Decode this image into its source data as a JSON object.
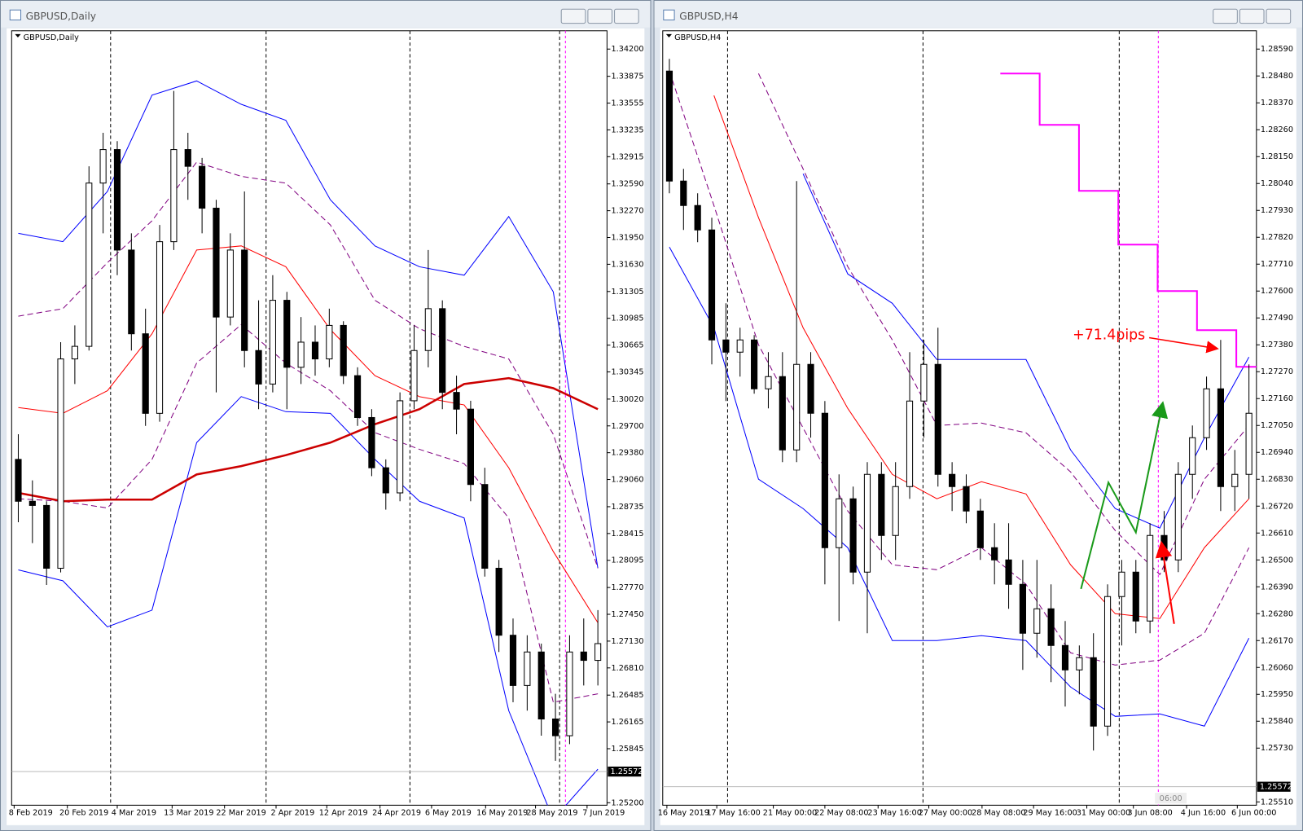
{
  "chart_data": [
    {
      "type": "candlestick",
      "window_title": "GBPUSD,Daily",
      "symbol_label": "GBPUSD,Daily",
      "x_labels": [
        "8 Feb 2019",
        "20 Feb 2019",
        "4 Mar 2019",
        "13 Mar 2019",
        "22 Mar 2019",
        "2 Apr 2019",
        "12 Apr 2019",
        "24 Apr 2019",
        "6 May 2019",
        "16 May 2019",
        "28 May 2019",
        "7 Jun 2019"
      ],
      "open": [
        1.293,
        1.288,
        1.2875,
        1.28,
        1.305,
        1.3065,
        1.326,
        1.33,
        1.318,
        1.308,
        1.2985,
        1.319,
        1.33,
        1.328,
        1.323,
        1.31,
        1.318,
        1.306,
        1.302,
        1.312,
        1.304,
        1.307,
        1.305,
        1.309,
        1.303,
        1.298,
        1.292,
        1.289,
        1.3,
        1.306,
        1.311,
        1.301,
        1.299,
        1.29,
        1.28,
        1.272,
        1.266,
        1.27,
        1.262,
        1.26,
        1.27,
        1.269
      ],
      "high": [
        1.296,
        1.2905,
        1.288,
        1.307,
        1.309,
        1.328,
        1.332,
        1.331,
        1.32,
        1.311,
        1.321,
        1.337,
        1.332,
        1.329,
        1.324,
        1.32,
        1.325,
        1.312,
        1.315,
        1.313,
        1.31,
        1.309,
        1.311,
        1.3095,
        1.304,
        1.299,
        1.293,
        1.301,
        1.309,
        1.318,
        1.312,
        1.303,
        1.3,
        1.292,
        1.281,
        1.274,
        1.272,
        1.271,
        1.265,
        1.272,
        1.274,
        1.275
      ],
      "low": [
        1.2855,
        1.283,
        1.278,
        1.2795,
        1.302,
        1.306,
        1.32,
        1.315,
        1.306,
        1.297,
        1.2975,
        1.318,
        1.324,
        1.32,
        1.301,
        1.309,
        1.304,
        1.299,
        1.301,
        1.299,
        1.302,
        1.303,
        1.304,
        1.302,
        1.297,
        1.291,
        1.287,
        1.288,
        1.299,
        1.304,
        1.299,
        1.296,
        1.288,
        1.279,
        1.27,
        1.264,
        1.263,
        1.26,
        1.257,
        1.259,
        1.266,
        1.266
      ],
      "close": [
        1.288,
        1.2875,
        1.28,
        1.305,
        1.3065,
        1.326,
        1.33,
        1.318,
        1.308,
        1.2985,
        1.319,
        1.33,
        1.328,
        1.323,
        1.31,
        1.318,
        1.306,
        1.302,
        1.312,
        1.304,
        1.307,
        1.305,
        1.309,
        1.303,
        1.298,
        1.292,
        1.289,
        1.3,
        1.306,
        1.311,
        1.301,
        1.299,
        1.29,
        1.28,
        1.272,
        1.266,
        1.27,
        1.262,
        1.26,
        1.27,
        1.269,
        1.271
      ],
      "lines": [
        {
          "color": "#0000ff",
          "style": "solid",
          "values": [
            1.32,
            1.319,
            1.325,
            1.3365,
            1.3382,
            1.3354,
            1.3335,
            1.324,
            1.3185,
            1.316,
            1.315,
            1.322,
            1.313,
            1.28
          ]
        },
        {
          "color": "#0000ff",
          "style": "solid",
          "values": [
            1.2798,
            1.2785,
            1.273,
            1.275,
            1.295,
            1.3005,
            1.2987,
            1.2985,
            1.293,
            1.288,
            1.286,
            1.263,
            1.25,
            1.256
          ]
        },
        {
          "color": "#ff0000",
          "style": "solid",
          "values": [
            1.2992,
            1.2985,
            1.3012,
            1.308,
            1.318,
            1.3185,
            1.316,
            1.3085,
            1.303,
            1.3005,
            1.2995,
            1.292,
            1.282,
            1.2735
          ]
        },
        {
          "color": "#800080",
          "style": "dashed",
          "values": [
            1.3101,
            1.311,
            1.3165,
            1.3215,
            1.3285,
            1.3268,
            1.326,
            1.321,
            1.312,
            1.3086,
            1.3065,
            1.305,
            1.296,
            1.28
          ]
        },
        {
          "color": "#800080",
          "style": "dashed",
          "values": [
            1.2883,
            1.288,
            1.2872,
            1.293,
            1.3045,
            1.3091,
            1.3045,
            1.3012,
            1.2962,
            1.2942,
            1.2925,
            1.286,
            1.264,
            1.265
          ]
        },
        {
          "color": "#cc0000",
          "style": "thick",
          "values": [
            1.289,
            1.288,
            1.2882,
            1.2882,
            1.2912,
            1.2922,
            1.2935,
            1.295,
            1.2972,
            1.299,
            1.302,
            1.3027,
            1.3015,
            1.299
          ]
        }
      ],
      "ylim": [
        1.252,
        1.342
      ],
      "yticks": [
        {
          "value": 1.342,
          "label": "1.34200"
        },
        1.33875,
        1.33555,
        1.33235,
        1.32915,
        {
          "value": 1.3259,
          "label": "1.32590"
        },
        {
          "value": 1.3227,
          "label": "1.32270"
        },
        {
          "value": 1.3195,
          "label": "1.31950"
        },
        {
          "value": 1.3163,
          "label": "1.31630"
        },
        1.31305,
        1.30985,
        1.30665,
        1.30345,
        {
          "value": 1.3002,
          "label": "1.30020"
        },
        {
          "value": 1.297,
          "label": "1.29700"
        },
        {
          "value": 1.2938,
          "label": "1.29380"
        },
        {
          "value": 1.2906,
          "label": "1.29060"
        },
        1.28735,
        1.28415,
        1.28095,
        {
          "value": 1.2777,
          "label": "1.27770"
        },
        {
          "value": 1.2745,
          "label": "1.27450"
        },
        {
          "value": 1.2713,
          "label": "1.27130"
        },
        {
          "value": 1.2681,
          "label": "1.26810"
        },
        1.26485,
        1.26165,
        1.25845,
        {
          "value": 1.252,
          "label": "1.25200"
        }
      ],
      "current_price": 1.25572
    },
    {
      "type": "candlestick",
      "window_title": "GBPUSD,H4",
      "symbol_label": "GBPUSD,H4",
      "x_labels": [
        "16 May 2019",
        "17 May 16:00",
        "21 May 00:00",
        "22 May 08:00",
        "23 May 16:00",
        "27 May 00:00",
        "28 May 08:00",
        "29 May 16:00",
        "31 May 00:00",
        "3 Jun 08:00",
        "4 Jun 16:00",
        "6 Jun 00:00"
      ],
      "open": [
        1.285,
        1.2805,
        1.2795,
        1.2785,
        1.274,
        1.2735,
        1.274,
        1.272,
        1.2725,
        1.2695,
        1.273,
        1.271,
        1.2655,
        1.2675,
        1.2645,
        1.2685,
        1.266,
        1.268,
        1.2715,
        1.273,
        1.2685,
        1.268,
        1.267,
        1.2655,
        1.265,
        1.264,
        1.262,
        1.263,
        1.2615,
        1.2605,
        1.261,
        1.2582,
        1.2635,
        1.2645,
        1.2625,
        1.266,
        1.265,
        1.2685,
        1.27,
        1.272,
        1.268,
        1.2685
      ],
      "high": [
        1.2855,
        1.281,
        1.28,
        1.279,
        1.2755,
        1.2745,
        1.2742,
        1.2735,
        1.2735,
        1.2805,
        1.2735,
        1.2715,
        1.2685,
        1.268,
        1.269,
        1.269,
        1.269,
        1.2735,
        1.274,
        1.2745,
        1.269,
        1.2685,
        1.2675,
        1.2665,
        1.2665,
        1.265,
        1.265,
        1.264,
        1.2625,
        1.2615,
        1.262,
        1.264,
        1.265,
        1.265,
        1.2665,
        1.267,
        1.269,
        1.2705,
        1.2725,
        1.274,
        1.2695,
        1.273
      ],
      "low": [
        1.28,
        1.2785,
        1.278,
        1.273,
        1.2715,
        1.2725,
        1.2718,
        1.2712,
        1.269,
        1.269,
        1.27,
        1.264,
        1.2625,
        1.264,
        1.262,
        1.265,
        1.265,
        1.2675,
        1.27,
        1.268,
        1.267,
        1.2665,
        1.265,
        1.264,
        1.263,
        1.2605,
        1.261,
        1.26,
        1.259,
        1.2595,
        1.2572,
        1.2578,
        1.2615,
        1.262,
        1.262,
        1.2645,
        1.2645,
        1.2675,
        1.2695,
        1.267,
        1.267,
        1.2675
      ],
      "close": [
        1.2805,
        1.2795,
        1.2785,
        1.274,
        1.2735,
        1.274,
        1.272,
        1.2725,
        1.2695,
        1.273,
        1.271,
        1.2655,
        1.2675,
        1.2645,
        1.2685,
        1.266,
        1.268,
        1.2715,
        1.273,
        1.2685,
        1.268,
        1.267,
        1.2655,
        1.265,
        1.264,
        1.262,
        1.263,
        1.2615,
        1.2605,
        1.261,
        1.2582,
        1.2635,
        1.2645,
        1.2625,
        1.266,
        1.265,
        1.2685,
        1.27,
        1.272,
        1.268,
        1.2685,
        1.271
      ],
      "lines": [
        {
          "color": "#0000ff",
          "style": "solid",
          "values": [
            null,
            null,
            null,
            1.2808,
            1.2767,
            1.2755,
            1.2732,
            1.2732,
            1.2732,
            1.2695,
            1.2671,
            1.2663,
            1.27,
            1.2733
          ]
        },
        {
          "color": "#0000ff",
          "style": "solid",
          "values": [
            1.2778,
            1.2745,
            1.2683,
            1.2671,
            1.2655,
            1.2617,
            1.2617,
            1.2619,
            1.2617,
            1.2598,
            1.2586,
            1.2587,
            1.2582,
            1.2618
          ]
        },
        {
          "color": "#ff0000",
          "style": "solid",
          "values": [
            null,
            1.284,
            1.279,
            1.2745,
            1.2712,
            1.2685,
            1.2675,
            1.2682,
            1.2677,
            1.2648,
            1.2628,
            1.2626,
            1.2655,
            1.2675
          ]
        },
        {
          "color": "#800080",
          "style": "dashed",
          "values": [
            null,
            null,
            1.2849,
            1.281,
            1.277,
            1.274,
            1.2705,
            1.2706,
            1.2702,
            1.2686,
            1.2662,
            1.2644,
            1.2683,
            1.2705
          ]
        },
        {
          "color": "#800080",
          "style": "dashed",
          "values": [
            1.285,
            1.2795,
            1.2738,
            1.2704,
            1.267,
            1.2648,
            1.2646,
            1.2655,
            1.264,
            1.2612,
            1.2607,
            1.2609,
            1.262,
            1.2655
          ]
        }
      ],
      "step_line": {
        "color": "#ff00ff",
        "values": [
          1.2849,
          1.2828,
          1.2801,
          1.2779,
          1.276,
          1.2744,
          1.2729
        ]
      },
      "annotation": {
        "text": "+71.4pips",
        "color": "#ff0000"
      },
      "time_marker_label": "06:00",
      "ylim": [
        1.2551,
        1.2859
      ],
      "yticks": [
        {
          "value": 1.2859,
          "label": "1.28590"
        },
        {
          "value": 1.2848,
          "label": "1.28480"
        },
        {
          "value": 1.2837,
          "label": "1.28370"
        },
        {
          "value": 1.2826,
          "label": "1.28260"
        },
        {
          "value": 1.2815,
          "label": "1.28150"
        },
        {
          "value": 1.2804,
          "label": "1.28040"
        },
        {
          "value": 1.2793,
          "label": "1.27930"
        },
        {
          "value": 1.2782,
          "label": "1.27820"
        },
        {
          "value": 1.2771,
          "label": "1.27710"
        },
        {
          "value": 1.276,
          "label": "1.27600"
        },
        {
          "value": 1.2749,
          "label": "1.27490"
        },
        {
          "value": 1.2738,
          "label": "1.27380"
        },
        {
          "value": 1.2727,
          "label": "1.27270"
        },
        {
          "value": 1.2716,
          "label": "1.27160"
        },
        {
          "value": 1.2705,
          "label": "1.27050"
        },
        {
          "value": 1.2694,
          "label": "1.26940"
        },
        {
          "value": 1.2683,
          "label": "1.26830"
        },
        {
          "value": 1.2672,
          "label": "1.26720"
        },
        {
          "value": 1.2661,
          "label": "1.26610"
        },
        {
          "value": 1.265,
          "label": "1.26500"
        },
        {
          "value": 1.2639,
          "label": "1.26390"
        },
        {
          "value": 1.2628,
          "label": "1.26280"
        },
        {
          "value": 1.2617,
          "label": "1.26170"
        },
        {
          "value": 1.2606,
          "label": "1.26060"
        },
        {
          "value": 1.2595,
          "label": "1.25950"
        },
        {
          "value": 1.2584,
          "label": "1.25840"
        },
        {
          "value": 1.2573,
          "label": "1.25730"
        },
        {
          "value": 1.2551,
          "label": "1.25510"
        }
      ],
      "current_price": 1.25572
    }
  ]
}
